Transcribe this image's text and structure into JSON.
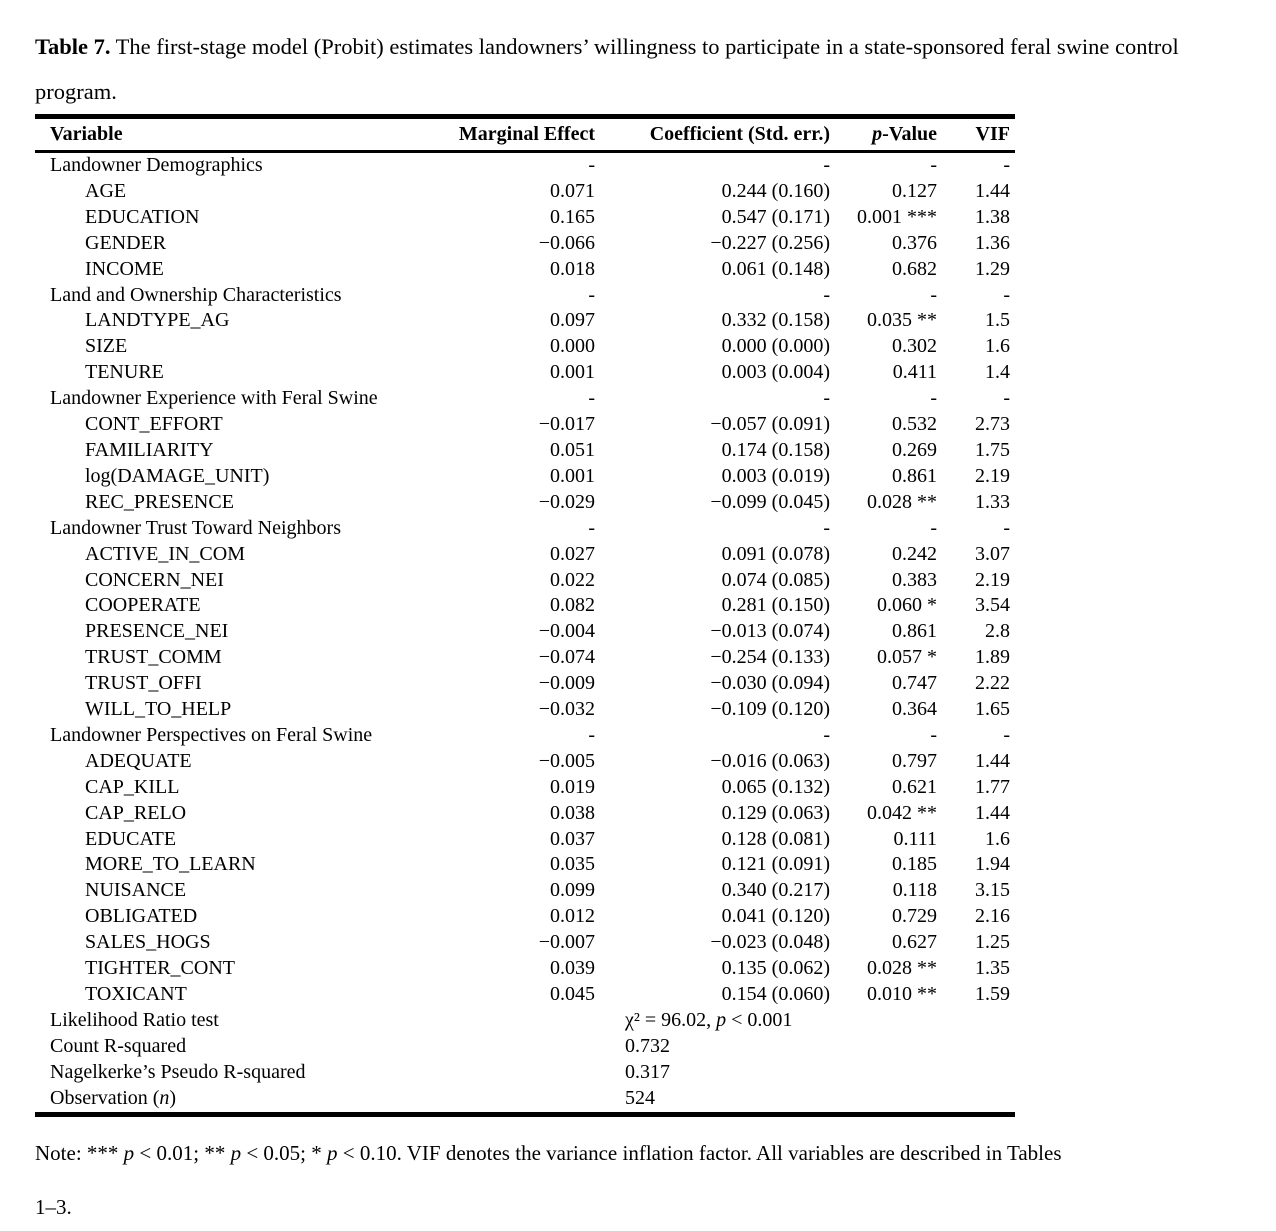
{
  "title": {
    "label": "Table 7.",
    "text": "The first-stage model (Probit) estimates landowners’ willingness to participate in a state-sponsored feral swine control program."
  },
  "table": {
    "headers": [
      "Variable",
      "Marginal Effect",
      "Coefficient (Std. err.)",
      "p-Value",
      "VIF"
    ],
    "rows": [
      {
        "section": true,
        "label": "Landowner Demographics",
        "me": "-",
        "coef": "-",
        "p": "-",
        "vif": "-"
      },
      {
        "section": false,
        "label": "AGE",
        "me": "0.071",
        "coef": "0.244 (0.160)",
        "p": "0.127",
        "vif": "1.44"
      },
      {
        "section": false,
        "label": "EDUCATION",
        "me": "0.165",
        "coef": "0.547 (0.171)",
        "p": "0.001 ***",
        "vif": "1.38"
      },
      {
        "section": false,
        "label": "GENDER",
        "me": "−0.066",
        "coef": "−0.227 (0.256)",
        "p": "0.376",
        "vif": "1.36"
      },
      {
        "section": false,
        "label": "INCOME",
        "me": "0.018",
        "coef": "0.061 (0.148)",
        "p": "0.682",
        "vif": "1.29"
      },
      {
        "section": true,
        "label": "Land and Ownership Characteristics",
        "me": "-",
        "coef": "-",
        "p": "-",
        "vif": "-"
      },
      {
        "section": false,
        "label": "LANDTYPE_AG",
        "me": "0.097",
        "coef": "0.332 (0.158)",
        "p": "0.035 **",
        "vif": "1.5"
      },
      {
        "section": false,
        "label": "SIZE",
        "me": "0.000",
        "coef": "0.000 (0.000)",
        "p": "0.302",
        "vif": "1.6"
      },
      {
        "section": false,
        "label": "TENURE",
        "me": "0.001",
        "coef": "0.003 (0.004)",
        "p": "0.411",
        "vif": "1.4"
      },
      {
        "section": true,
        "label": "Landowner Experience with Feral Swine",
        "me": "-",
        "coef": "-",
        "p": "-",
        "vif": "-"
      },
      {
        "section": false,
        "label": "CONT_EFFORT",
        "me": "−0.017",
        "coef": "−0.057 (0.091)",
        "p": "0.532",
        "vif": "2.73"
      },
      {
        "section": false,
        "label": "FAMILIARITY",
        "me": "0.051",
        "coef": "0.174 (0.158)",
        "p": "0.269",
        "vif": "1.75"
      },
      {
        "section": false,
        "label": "log(DAMAGE_UNIT)",
        "me": "0.001",
        "coef": "0.003 (0.019)",
        "p": "0.861",
        "vif": "2.19"
      },
      {
        "section": false,
        "label": "REC_PRESENCE",
        "me": "−0.029",
        "coef": "−0.099 (0.045)",
        "p": "0.028 **",
        "vif": "1.33"
      },
      {
        "section": true,
        "label": "Landowner Trust Toward Neighbors",
        "me": "-",
        "coef": "-",
        "p": "-",
        "vif": "-"
      },
      {
        "section": false,
        "label": "ACTIVE_IN_COM",
        "me": "0.027",
        "coef": "0.091 (0.078)",
        "p": "0.242",
        "vif": "3.07"
      },
      {
        "section": false,
        "label": "CONCERN_NEI",
        "me": "0.022",
        "coef": "0.074 (0.085)",
        "p": "0.383",
        "vif": "2.19"
      },
      {
        "section": false,
        "label": "COOPERATE",
        "me": "0.082",
        "coef": "0.281 (0.150)",
        "p": "0.060 *",
        "vif": "3.54"
      },
      {
        "section": false,
        "label": "PRESENCE_NEI",
        "me": "−0.004",
        "coef": "−0.013 (0.074)",
        "p": "0.861",
        "vif": "2.8"
      },
      {
        "section": false,
        "label": "TRUST_COMM",
        "me": "−0.074",
        "coef": "−0.254 (0.133)",
        "p": "0.057 *",
        "vif": "1.89"
      },
      {
        "section": false,
        "label": "TRUST_OFFI",
        "me": "−0.009",
        "coef": "−0.030 (0.094)",
        "p": "0.747",
        "vif": "2.22"
      },
      {
        "section": false,
        "label": "WILL_TO_HELP",
        "me": "−0.032",
        "coef": "−0.109 (0.120)",
        "p": "0.364",
        "vif": "1.65"
      },
      {
        "section": true,
        "label": "Landowner Perspectives on Feral Swine",
        "me": "-",
        "coef": "-",
        "p": "-",
        "vif": "-"
      },
      {
        "section": false,
        "label": "ADEQUATE",
        "me": "−0.005",
        "coef": "−0.016 (0.063)",
        "p": "0.797",
        "vif": "1.44"
      },
      {
        "section": false,
        "label": "CAP_KILL",
        "me": "0.019",
        "coef": "0.065 (0.132)",
        "p": "0.621",
        "vif": "1.77"
      },
      {
        "section": false,
        "label": "CAP_RELO",
        "me": "0.038",
        "coef": "0.129 (0.063)",
        "p": "0.042 **",
        "vif": "1.44"
      },
      {
        "section": false,
        "label": "EDUCATE",
        "me": "0.037",
        "coef": "0.128 (0.081)",
        "p": "0.111",
        "vif": "1.6"
      },
      {
        "section": false,
        "label": "MORE_TO_LEARN",
        "me": "0.035",
        "coef": "0.121 (0.091)",
        "p": "0.185",
        "vif": "1.94"
      },
      {
        "section": false,
        "label": "NUISANCE",
        "me": "0.099",
        "coef": "0.340 (0.217)",
        "p": "0.118",
        "vif": "3.15"
      },
      {
        "section": false,
        "label": "OBLIGATED",
        "me": "0.012",
        "coef": "0.041 (0.120)",
        "p": "0.729",
        "vif": "2.16"
      },
      {
        "section": false,
        "label": "SALES_HOGS",
        "me": "−0.007",
        "coef": "−0.023 (0.048)",
        "p": "0.627",
        "vif": "1.25"
      },
      {
        "section": false,
        "label": "TIGHTER_CONT",
        "me": "0.039",
        "coef": "0.135 (0.062)",
        "p": "0.028 **",
        "vif": "1.35"
      },
      {
        "section": false,
        "label": "TOXICANT",
        "me": "0.045",
        "coef": "0.154 (0.060)",
        "p": "0.010 **",
        "vif": "1.59"
      }
    ],
    "stats": [
      {
        "label": "Likelihood Ratio test",
        "value": "χ² = 96.02, p < 0.001"
      },
      {
        "label": "Count R-squared",
        "value": "0.732"
      },
      {
        "label": "Nagelkerke’s Pseudo R-squared",
        "value": "0.317"
      },
      {
        "label": "Observation (n)",
        "value": "524"
      }
    ]
  },
  "note": {
    "lines": [
      "Note: *** p < 0.01; ** p < 0.05; * p < 0.10. VIF denotes the variance inflation factor. All variables are described in Tables",
      "1–3."
    ]
  },
  "colors": {
    "text": "#000000",
    "background": "#ffffff",
    "rule": "#000000"
  }
}
